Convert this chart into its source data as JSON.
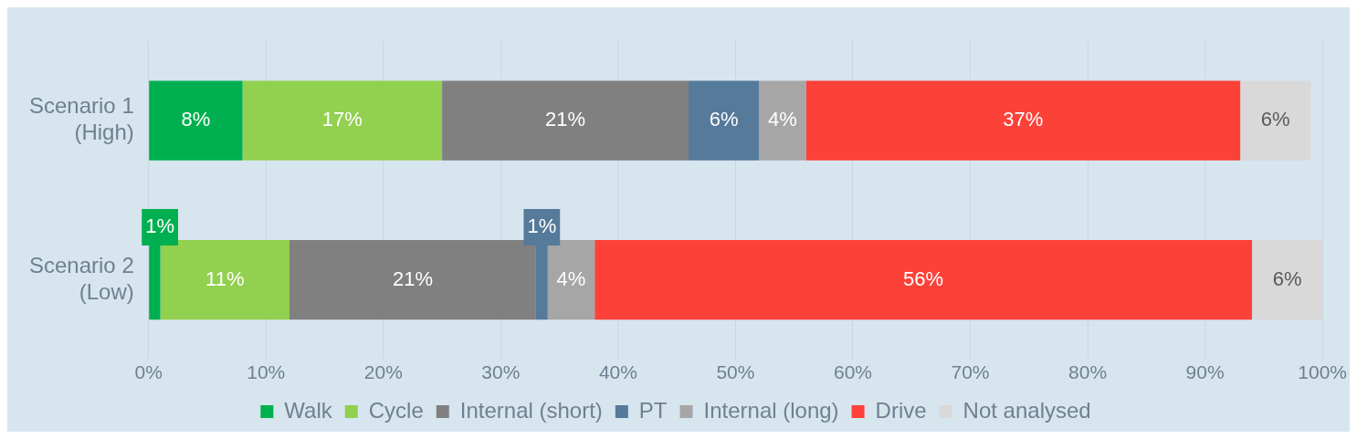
{
  "chart_data": {
    "type": "bar",
    "orientation": "horizontal",
    "stacked": true,
    "categories": [
      "Scenario 1\n(High)",
      "Scenario 2\n(Low)"
    ],
    "series": [
      {
        "name": "Walk",
        "color": "#00b050",
        "values": [
          8,
          1
        ],
        "value_labels": [
          "8%",
          "1%"
        ]
      },
      {
        "name": "Cycle",
        "color": "#92d050",
        "values": [
          17,
          11
        ],
        "value_labels": [
          "17%",
          "11%"
        ]
      },
      {
        "name": "Internal (short)",
        "color": "#808080",
        "values": [
          21,
          21
        ],
        "value_labels": [
          "21%",
          "21%"
        ]
      },
      {
        "name": "PT",
        "color": "#557a9a",
        "values": [
          6,
          1
        ],
        "value_labels": [
          "6%",
          "1%"
        ]
      },
      {
        "name": "Internal (long)",
        "color": "#a6a6a6",
        "values": [
          4,
          4
        ],
        "value_labels": [
          "4%",
          "4%"
        ]
      },
      {
        "name": "Drive",
        "color": "#fc4138",
        "values": [
          37,
          56
        ],
        "value_labels": [
          "37%",
          "56%"
        ]
      },
      {
        "name": "Not analysed",
        "color": "#d9d9d9",
        "values": [
          6,
          6
        ],
        "value_labels": [
          "6%",
          "6%"
        ]
      }
    ],
    "xlim": [
      0,
      100
    ],
    "xticks": [
      {
        "value": 0,
        "label": "0%"
      },
      {
        "value": 10,
        "label": "10%"
      },
      {
        "value": 20,
        "label": "20%"
      },
      {
        "value": 30,
        "label": "30%"
      },
      {
        "value": 40,
        "label": "40%"
      },
      {
        "value": 50,
        "label": "50%"
      },
      {
        "value": 60,
        "label": "60%"
      },
      {
        "value": 70,
        "label": "70%"
      },
      {
        "value": 80,
        "label": "80%"
      },
      {
        "value": 90,
        "label": "90%"
      },
      {
        "value": 100,
        "label": "100%"
      }
    ],
    "grid": "x",
    "legend": "bottom"
  }
}
